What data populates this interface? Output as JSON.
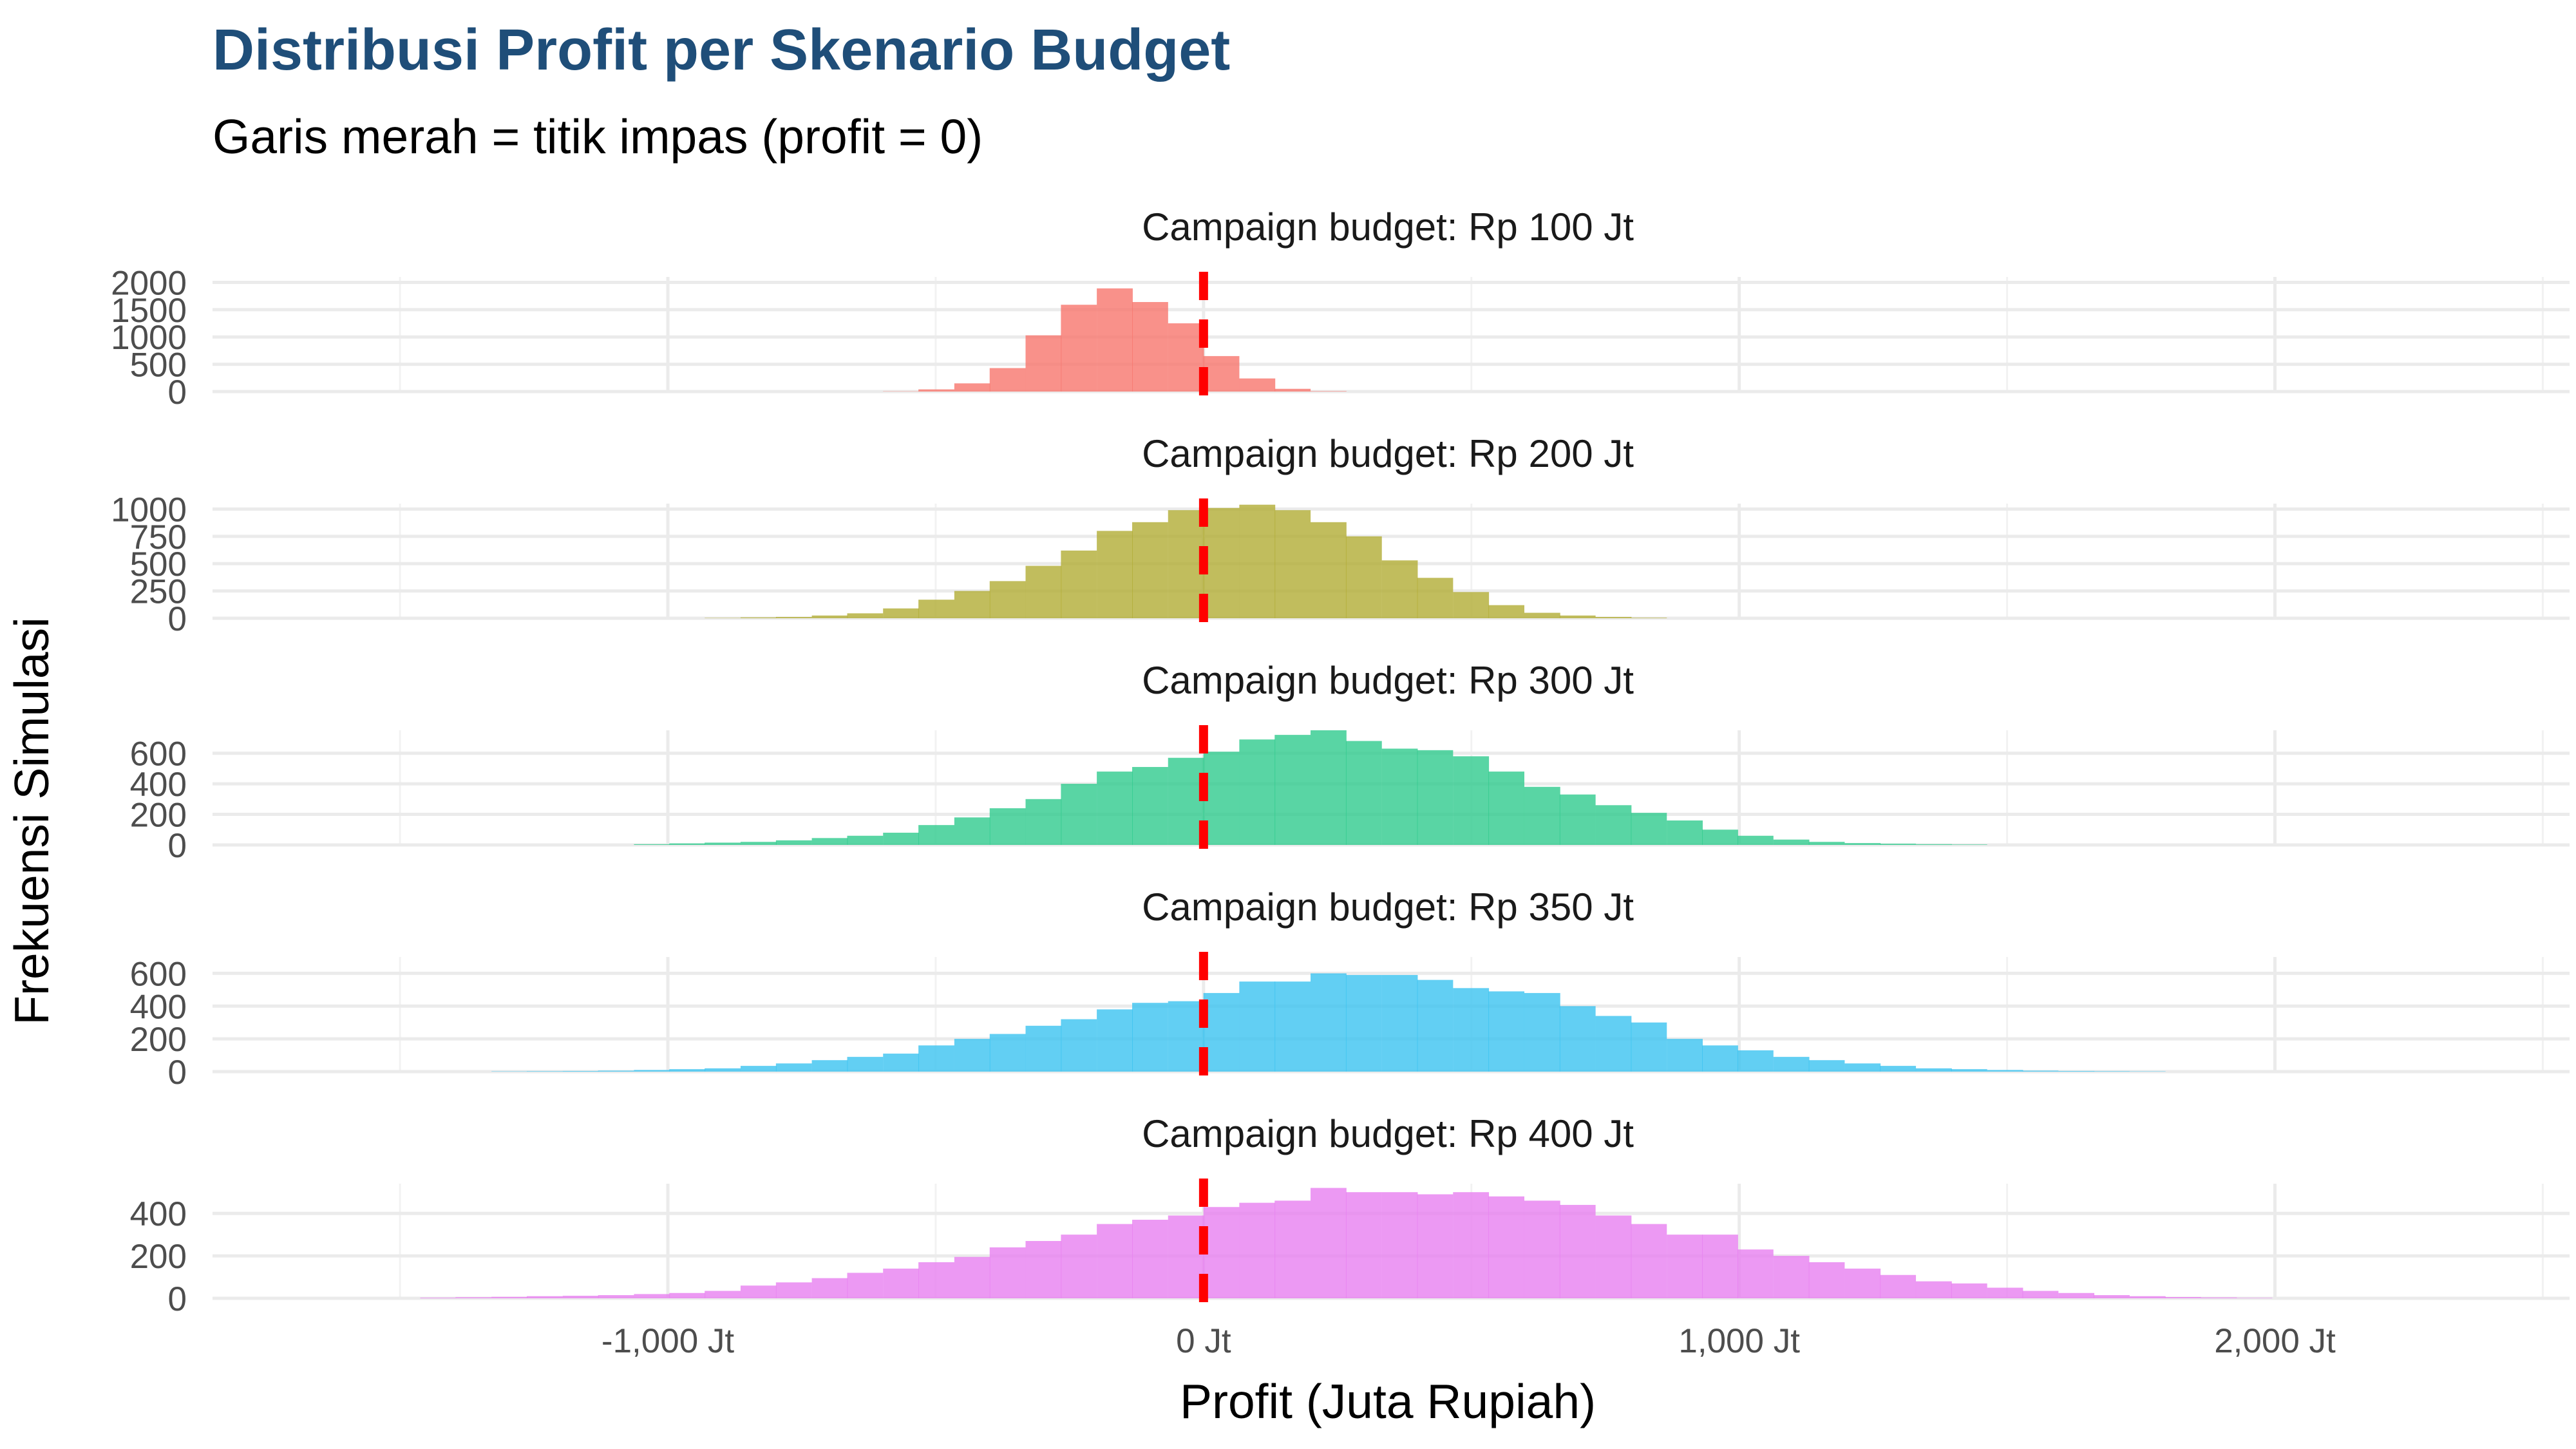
{
  "chart_data": {
    "type": "histogram",
    "title": "Distribusi Profit per Skenario Budget",
    "subtitle": "Garis merah = titik impas (profit = 0)",
    "xlabel": "Profit (Juta Rupiah)",
    "ylabel": "Frekuensi Simulasi",
    "xlim": [
      -1850,
      2550
    ],
    "x_ticks": [
      {
        "value": -1000,
        "label": "-1,000 Jt"
      },
      {
        "value": 0,
        "label": "0 Jt"
      },
      {
        "value": 1000,
        "label": "1,000 Jt"
      },
      {
        "value": 2000,
        "label": "2,000 Jt"
      }
    ],
    "x_minor": [
      -1500,
      -500,
      500,
      1500,
      2500
    ],
    "bin_width": 66.5,
    "reference_line": {
      "x": 0,
      "color": "#ff0000",
      "style": "dashed",
      "label": "titik impas (profit = 0)"
    },
    "panels": [
      {
        "label": "Campaign budget: Rp 100 Jt",
        "color": "#f8766d",
        "ylim": [
          0,
          2100
        ],
        "y_ticks": [
          0,
          500,
          1000,
          1500,
          2000
        ],
        "bins": [
          {
            "x": -565,
            "count": 5
          },
          {
            "x": -499,
            "count": 40
          },
          {
            "x": -432,
            "count": 150
          },
          {
            "x": -366,
            "count": 430
          },
          {
            "x": -299,
            "count": 1030
          },
          {
            "x": -233,
            "count": 1590
          },
          {
            "x": -166,
            "count": 1890
          },
          {
            "x": -100,
            "count": 1640
          },
          {
            "x": -33,
            "count": 1250
          },
          {
            "x": 33,
            "count": 650
          },
          {
            "x": 100,
            "count": 240
          },
          {
            "x": 166,
            "count": 50
          },
          {
            "x": 233,
            "count": 8
          }
        ]
      },
      {
        "label": "Campaign budget: Rp 200 Jt",
        "color": "#b2ad35",
        "ylim": [
          0,
          1050
        ],
        "y_ticks": [
          {
            "value": 0,
            "label": "0"
          },
          {
            "value": 250,
            "label": "250"
          },
          {
            "value": 500,
            "label": "500"
          },
          {
            "value": 750,
            "label": "750"
          },
          {
            "value": 1000,
            "label": "1000"
          }
        ],
        "bins": [
          {
            "x": -898,
            "count": 3
          },
          {
            "x": -831,
            "count": 8
          },
          {
            "x": -765,
            "count": 12
          },
          {
            "x": -698,
            "count": 25
          },
          {
            "x": -632,
            "count": 45
          },
          {
            "x": -565,
            "count": 90
          },
          {
            "x": -499,
            "count": 170
          },
          {
            "x": -432,
            "count": 250
          },
          {
            "x": -366,
            "count": 340
          },
          {
            "x": -299,
            "count": 480
          },
          {
            "x": -233,
            "count": 620
          },
          {
            "x": -166,
            "count": 800
          },
          {
            "x": -100,
            "count": 880
          },
          {
            "x": -33,
            "count": 990
          },
          {
            "x": 33,
            "count": 1010
          },
          {
            "x": 100,
            "count": 1040
          },
          {
            "x": 166,
            "count": 990
          },
          {
            "x": 233,
            "count": 880
          },
          {
            "x": 299,
            "count": 750
          },
          {
            "x": 366,
            "count": 530
          },
          {
            "x": 432,
            "count": 370
          },
          {
            "x": 499,
            "count": 240
          },
          {
            "x": 565,
            "count": 120
          },
          {
            "x": 632,
            "count": 50
          },
          {
            "x": 698,
            "count": 25
          },
          {
            "x": 765,
            "count": 12
          },
          {
            "x": 831,
            "count": 5
          }
        ]
      },
      {
        "label": "Campaign budget: Rp 300 Jt",
        "color": "#2fcb8d",
        "ylim": [
          0,
          750
        ],
        "y_ticks": [
          0,
          200,
          400,
          600
        ],
        "bins": [
          {
            "x": -1030,
            "count": 5
          },
          {
            "x": -964,
            "count": 10
          },
          {
            "x": -898,
            "count": 15
          },
          {
            "x": -831,
            "count": 20
          },
          {
            "x": -765,
            "count": 30
          },
          {
            "x": -698,
            "count": 45
          },
          {
            "x": -632,
            "count": 60
          },
          {
            "x": -565,
            "count": 80
          },
          {
            "x": -499,
            "count": 130
          },
          {
            "x": -432,
            "count": 180
          },
          {
            "x": -366,
            "count": 240
          },
          {
            "x": -299,
            "count": 300
          },
          {
            "x": -233,
            "count": 400
          },
          {
            "x": -166,
            "count": 480
          },
          {
            "x": -100,
            "count": 510
          },
          {
            "x": -33,
            "count": 570
          },
          {
            "x": 33,
            "count": 610
          },
          {
            "x": 100,
            "count": 690
          },
          {
            "x": 166,
            "count": 720
          },
          {
            "x": 233,
            "count": 750
          },
          {
            "x": 299,
            "count": 680
          },
          {
            "x": 366,
            "count": 630
          },
          {
            "x": 432,
            "count": 620
          },
          {
            "x": 499,
            "count": 580
          },
          {
            "x": 565,
            "count": 480
          },
          {
            "x": 632,
            "count": 380
          },
          {
            "x": 698,
            "count": 330
          },
          {
            "x": 765,
            "count": 260
          },
          {
            "x": 831,
            "count": 210
          },
          {
            "x": 898,
            "count": 160
          },
          {
            "x": 964,
            "count": 100
          },
          {
            "x": 1030,
            "count": 60
          },
          {
            "x": 1097,
            "count": 35
          },
          {
            "x": 1163,
            "count": 20
          },
          {
            "x": 1230,
            "count": 12
          },
          {
            "x": 1296,
            "count": 8
          },
          {
            "x": 1363,
            "count": 5
          },
          {
            "x": 1429,
            "count": 3
          }
        ]
      },
      {
        "label": "Campaign budget: Rp 350 Jt",
        "color": "#3bc3f0",
        "ylim": [
          0,
          700
        ],
        "y_ticks": [
          0,
          200,
          400,
          600
        ],
        "bins": [
          {
            "x": -1296,
            "count": 2
          },
          {
            "x": -1230,
            "count": 3
          },
          {
            "x": -1163,
            "count": 4
          },
          {
            "x": -1097,
            "count": 6
          },
          {
            "x": -1030,
            "count": 10
          },
          {
            "x": -964,
            "count": 15
          },
          {
            "x": -898,
            "count": 20
          },
          {
            "x": -831,
            "count": 35
          },
          {
            "x": -765,
            "count": 50
          },
          {
            "x": -698,
            "count": 70
          },
          {
            "x": -632,
            "count": 90
          },
          {
            "x": -565,
            "count": 110
          },
          {
            "x": -499,
            "count": 160
          },
          {
            "x": -432,
            "count": 200
          },
          {
            "x": -366,
            "count": 230
          },
          {
            "x": -299,
            "count": 280
          },
          {
            "x": -233,
            "count": 320
          },
          {
            "x": -166,
            "count": 380
          },
          {
            "x": -100,
            "count": 420
          },
          {
            "x": -33,
            "count": 430
          },
          {
            "x": 33,
            "count": 480
          },
          {
            "x": 100,
            "count": 550
          },
          {
            "x": 166,
            "count": 550
          },
          {
            "x": 233,
            "count": 600
          },
          {
            "x": 299,
            "count": 590
          },
          {
            "x": 366,
            "count": 590
          },
          {
            "x": 432,
            "count": 560
          },
          {
            "x": 499,
            "count": 510
          },
          {
            "x": 565,
            "count": 490
          },
          {
            "x": 632,
            "count": 480
          },
          {
            "x": 698,
            "count": 400
          },
          {
            "x": 765,
            "count": 340
          },
          {
            "x": 831,
            "count": 300
          },
          {
            "x": 898,
            "count": 200
          },
          {
            "x": 964,
            "count": 160
          },
          {
            "x": 1030,
            "count": 130
          },
          {
            "x": 1097,
            "count": 90
          },
          {
            "x": 1163,
            "count": 70
          },
          {
            "x": 1230,
            "count": 50
          },
          {
            "x": 1296,
            "count": 35
          },
          {
            "x": 1363,
            "count": 20
          },
          {
            "x": 1429,
            "count": 15
          },
          {
            "x": 1496,
            "count": 10
          },
          {
            "x": 1562,
            "count": 6
          },
          {
            "x": 1629,
            "count": 4
          },
          {
            "x": 1695,
            "count": 3
          },
          {
            "x": 1762,
            "count": 2
          }
        ]
      },
      {
        "label": "Campaign budget: Rp 400 Jt",
        "color": "#e77ff0",
        "ylim": [
          0,
          540
        ],
        "y_ticks": [
          0,
          200,
          400
        ],
        "bins": [
          {
            "x": -1429,
            "count": 3
          },
          {
            "x": -1363,
            "count": 5
          },
          {
            "x": -1296,
            "count": 7
          },
          {
            "x": -1230,
            "count": 10
          },
          {
            "x": -1163,
            "count": 12
          },
          {
            "x": -1097,
            "count": 15
          },
          {
            "x": -1030,
            "count": 20
          },
          {
            "x": -964,
            "count": 25
          },
          {
            "x": -898,
            "count": 35
          },
          {
            "x": -831,
            "count": 60
          },
          {
            "x": -765,
            "count": 75
          },
          {
            "x": -698,
            "count": 95
          },
          {
            "x": -632,
            "count": 120
          },
          {
            "x": -565,
            "count": 140
          },
          {
            "x": -499,
            "count": 170
          },
          {
            "x": -432,
            "count": 195
          },
          {
            "x": -366,
            "count": 240
          },
          {
            "x": -299,
            "count": 270
          },
          {
            "x": -233,
            "count": 300
          },
          {
            "x": -166,
            "count": 350
          },
          {
            "x": -100,
            "count": 370
          },
          {
            "x": -33,
            "count": 390
          },
          {
            "x": 33,
            "count": 430
          },
          {
            "x": 100,
            "count": 450
          },
          {
            "x": 166,
            "count": 460
          },
          {
            "x": 233,
            "count": 520
          },
          {
            "x": 299,
            "count": 500
          },
          {
            "x": 366,
            "count": 500
          },
          {
            "x": 432,
            "count": 490
          },
          {
            "x": 499,
            "count": 500
          },
          {
            "x": 565,
            "count": 480
          },
          {
            "x": 632,
            "count": 460
          },
          {
            "x": 698,
            "count": 440
          },
          {
            "x": 765,
            "count": 390
          },
          {
            "x": 831,
            "count": 350
          },
          {
            "x": 898,
            "count": 300
          },
          {
            "x": 964,
            "count": 300
          },
          {
            "x": 1030,
            "count": 230
          },
          {
            "x": 1097,
            "count": 200
          },
          {
            "x": 1163,
            "count": 170
          },
          {
            "x": 1230,
            "count": 140
          },
          {
            "x": 1296,
            "count": 110
          },
          {
            "x": 1363,
            "count": 80
          },
          {
            "x": 1429,
            "count": 70
          },
          {
            "x": 1496,
            "count": 50
          },
          {
            "x": 1562,
            "count": 35
          },
          {
            "x": 1629,
            "count": 25
          },
          {
            "x": 1695,
            "count": 15
          },
          {
            "x": 1762,
            "count": 10
          },
          {
            "x": 1828,
            "count": 6
          },
          {
            "x": 1895,
            "count": 4
          },
          {
            "x": 1961,
            "count": 2
          }
        ]
      }
    ]
  }
}
